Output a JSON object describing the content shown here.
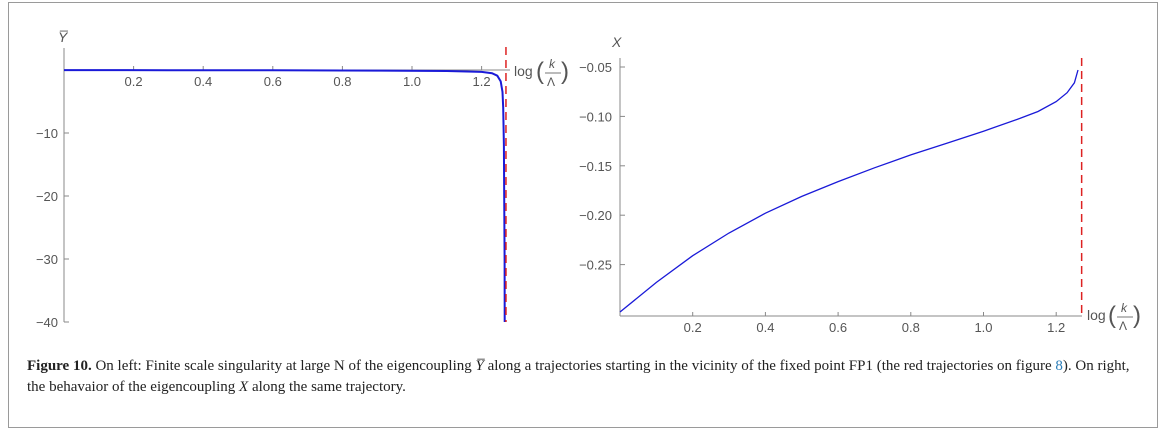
{
  "colors": {
    "curve": "#1a1ad8",
    "singularity": "#dd2222",
    "axis": "#888888",
    "link": "#2a7db8"
  },
  "chart_data": [
    {
      "type": "line",
      "ylabel": "Y̅",
      "xlabel": "log(k/Λ)",
      "xlim": [
        0,
        1.3
      ],
      "ylim": [
        -40,
        0
      ],
      "xticks": [
        "0.2",
        "0.4",
        "0.6",
        "0.8",
        "1.0",
        "1.2"
      ],
      "yticks": [
        "−10",
        "−20",
        "−30",
        "−40"
      ],
      "singularity_x": 1.27,
      "series": [
        {
          "x": [
            0.0,
            0.3,
            0.6,
            0.9,
            1.1,
            1.2,
            1.23,
            1.245,
            1.255,
            1.26,
            1.262,
            1.264,
            1.265,
            1.266,
            1.2665
          ],
          "y": [
            -0.02,
            -0.03,
            -0.05,
            -0.09,
            -0.16,
            -0.3,
            -0.5,
            -0.9,
            -1.8,
            -3.5,
            -6,
            -12,
            -20,
            -30,
            -40
          ]
        }
      ]
    },
    {
      "type": "line",
      "ylabel": "X",
      "xlabel": "log(k/Λ)",
      "xlim": [
        0,
        1.3
      ],
      "ylim": [
        -0.3,
        -0.05
      ],
      "xticks": [
        "0.2",
        "0.4",
        "0.6",
        "0.8",
        "1.0",
        "1.2"
      ],
      "yticks": [
        "−0.05",
        "−0.10",
        "−0.15",
        "−0.20",
        "−0.25"
      ],
      "singularity_x": 1.27,
      "series": [
        {
          "x": [
            0.0,
            0.1,
            0.2,
            0.3,
            0.4,
            0.5,
            0.6,
            0.7,
            0.8,
            0.9,
            1.0,
            1.1,
            1.15,
            1.2,
            1.23,
            1.25,
            1.26
          ],
          "y": [
            -0.298,
            -0.268,
            -0.241,
            -0.218,
            -0.198,
            -0.181,
            -0.166,
            -0.152,
            -0.139,
            -0.127,
            -0.115,
            -0.102,
            -0.095,
            -0.085,
            -0.076,
            -0.066,
            -0.053
          ]
        }
      ]
    }
  ],
  "caption": {
    "label": "Figure 10.",
    "text_1": " On left: Finite scale singularity at large N of the eigencoupling ",
    "symbol_y": "Y̅",
    "text_2": " along a trajectories starting in the vicinity of the fixed point FP1 (the red trajectories on figure ",
    "fig_ref": "8",
    "text_3": "). On right, the behavaior of the eigencoupling ",
    "symbol_x": "X",
    "text_4": " along the same trajectory."
  }
}
